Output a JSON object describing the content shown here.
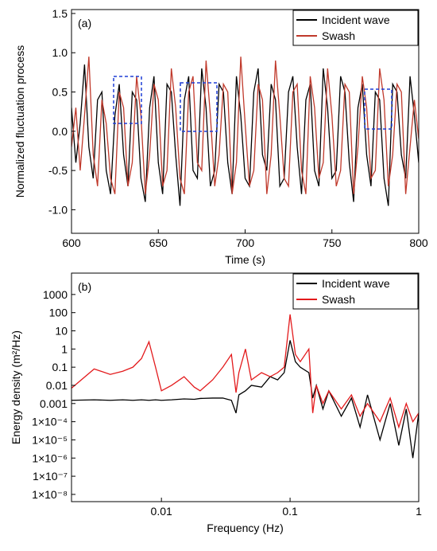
{
  "chart_data": [
    {
      "type": "line",
      "annotation": "(a)",
      "xlabel": "Time (s)",
      "ylabel": "Normalized fluctuation process",
      "x": [
        600,
        602.5,
        605,
        607.5,
        610,
        612.5,
        615,
        617.5,
        620,
        622.5,
        625,
        627.5,
        630,
        632.5,
        635,
        637.5,
        640,
        642.5,
        645,
        647.5,
        650,
        652.5,
        655,
        657.5,
        660,
        662.5,
        665,
        667.5,
        670,
        672.5,
        675,
        677.5,
        680,
        682.5,
        685,
        687.5,
        690,
        692.5,
        695,
        697.5,
        700,
        702.5,
        705,
        707.5,
        710,
        712.5,
        715,
        717.5,
        720,
        722.5,
        725,
        727.5,
        730,
        732.5,
        735,
        737.5,
        740,
        742.5,
        745,
        747.5,
        750,
        752.5,
        755,
        757.5,
        760,
        762.5,
        765,
        767.5,
        770,
        772.5,
        775,
        777.5,
        780,
        782.5,
        785,
        787.5,
        790,
        792.5,
        795,
        797.5,
        800
      ],
      "series": [
        {
          "name": "Incident wave",
          "color": "#000000",
          "values": [
            0.3,
            -0.4,
            0.1,
            0.85,
            -0.2,
            -0.6,
            0.4,
            0.5,
            -0.5,
            -0.8,
            0.2,
            0.6,
            -0.3,
            -0.7,
            0.5,
            0.4,
            -0.6,
            -0.9,
            0.3,
            0.7,
            -0.4,
            -0.8,
            0.6,
            0.5,
            -0.3,
            -0.95,
            0.4,
            0.7,
            -0.5,
            -0.6,
            0.8,
            0.3,
            -0.7,
            -0.5,
            0.6,
            0.5,
            -0.4,
            -0.8,
            0.7,
            0.2,
            -0.6,
            -0.7,
            0.5,
            0.8,
            -0.3,
            -0.5,
            0.6,
            0.4,
            -0.7,
            -0.6,
            0.5,
            0.7,
            -0.2,
            -0.8,
            0.4,
            0.6,
            -0.5,
            -0.7,
            0.8,
            0.3,
            -0.6,
            -0.5,
            0.7,
            0.5,
            -0.4,
            -0.9,
            0.3,
            0.6,
            -0.3,
            -0.7,
            0.5,
            0.4,
            -0.6,
            -0.95,
            0.6,
            0.5,
            -0.3,
            -0.6,
            0.7,
            0.2,
            -0.4
          ]
        },
        {
          "name": "Swash",
          "color": "#c0392b",
          "values": [
            -0.2,
            0.3,
            -0.5,
            0.2,
            0.95,
            -0.3,
            -0.7,
            0.4,
            0.1,
            -0.6,
            -0.8,
            0.5,
            0.3,
            -0.7,
            -0.4,
            0.7,
            0.2,
            -0.8,
            -0.3,
            0.6,
            0.4,
            -0.7,
            -0.5,
            0.8,
            0.3,
            -0.6,
            -0.8,
            0.5,
            0.7,
            -0.4,
            -0.5,
            0.9,
            0.2,
            -0.7,
            -0.3,
            0.6,
            0.5,
            -0.8,
            -0.4,
            0.95,
            0.1,
            -0.7,
            -0.5,
            0.6,
            0.4,
            -0.8,
            -0.3,
            0.9,
            0.2,
            -0.6,
            -0.7,
            0.5,
            0.6,
            -0.5,
            -0.8,
            0.7,
            0.3,
            -0.6,
            -0.4,
            0.8,
            0.2,
            -0.7,
            -0.5,
            0.6,
            0.5,
            -0.8,
            -0.2,
            0.7,
            0.3,
            -0.6,
            -0.5,
            0.8,
            0.4,
            -0.7,
            -0.3,
            0.6,
            0.5,
            -0.8,
            -0.2,
            0.4,
            -0.1
          ]
        }
      ],
      "xlim": [
        600,
        800
      ],
      "xticks": [
        600,
        650,
        700,
        750,
        800
      ],
      "ylim": [
        -1.3,
        1.55
      ],
      "yticks": [
        {
          "value": -1,
          "label": "-1.0"
        },
        {
          "value": -0.5,
          "label": "-0.5"
        },
        {
          "value": 0,
          "label": "0.0"
        },
        {
          "value": 0.5,
          "label": "0.5"
        },
        {
          "value": 1,
          "label": "1.0"
        },
        {
          "value": 1.5,
          "label": "1.5"
        }
      ],
      "legend": "upper right"
    },
    {
      "type": "line",
      "annotation": "(b)",
      "xlabel": "Frequency (Hz)",
      "ylabel": "Energy density (m²/Hz)",
      "xscale": "log",
      "yscale": "log",
      "x": [
        0.002,
        0.003,
        0.004,
        0.005,
        0.006,
        0.007,
        0.008,
        0.009,
        0.01,
        0.012,
        0.015,
        0.018,
        0.02,
        0.025,
        0.03,
        0.035,
        0.038,
        0.04,
        0.045,
        0.05,
        0.06,
        0.07,
        0.08,
        0.09,
        0.1,
        0.11,
        0.12,
        0.14,
        0.15,
        0.16,
        0.18,
        0.2,
        0.25,
        0.3,
        0.35,
        0.4,
        0.5,
        0.6,
        0.7,
        0.8,
        0.9,
        1
      ],
      "series": [
        {
          "name": "Incident wave",
          "color": "#000000",
          "values": [
            0.0015,
            0.0016,
            0.0015,
            0.0016,
            0.0015,
            0.0016,
            0.0015,
            0.0016,
            0.0015,
            0.0016,
            0.0018,
            0.0017,
            0.0019,
            0.002,
            0.002,
            0.0015,
            0.0003,
            0.003,
            0.005,
            0.01,
            0.008,
            0.03,
            0.02,
            0.05,
            3,
            0.2,
            0.1,
            0.05,
            0.002,
            0.01,
            0.0005,
            0.005,
            0.0002,
            0.002,
            5e-05,
            0.003,
            1e-05,
            0.001,
            5e-06,
            0.0005,
            1e-06,
            0.0003
          ]
        },
        {
          "name": "Swash",
          "color": "#e31a1c",
          "values": [
            0.007,
            0.08,
            0.04,
            0.06,
            0.1,
            0.3,
            2.5,
            0.1,
            0.005,
            0.01,
            0.03,
            0.008,
            0.005,
            0.02,
            0.1,
            0.5,
            0.004,
            0.05,
            1,
            0.02,
            0.05,
            0.03,
            0.05,
            0.1,
            80,
            0.5,
            0.2,
            1,
            0.0003,
            0.01,
            0.001,
            0.005,
            0.0005,
            0.003,
            0.0002,
            0.001,
            0.0001,
            0.002,
            5e-05,
            0.001,
            0.0001,
            0.0003
          ]
        }
      ],
      "xlim": [
        0.002,
        1
      ],
      "xticks": [
        0.01,
        0.1,
        1
      ],
      "ylim": [
        4e-09,
        15000
      ],
      "yticks": [
        1000,
        100,
        10,
        1,
        0.1,
        0.01,
        0.001,
        {
          "value": 0.0001,
          "label": "1×10⁻⁴"
        },
        {
          "value": 1e-05,
          "label": "1×10⁻⁵"
        },
        {
          "value": 1e-06,
          "label": "1×10⁻⁶"
        },
        {
          "value": 1e-07,
          "label": "1×10⁻⁷"
        },
        {
          "value": 1e-08,
          "label": "1×10⁻⁸"
        }
      ],
      "legend": "upper right"
    }
  ]
}
